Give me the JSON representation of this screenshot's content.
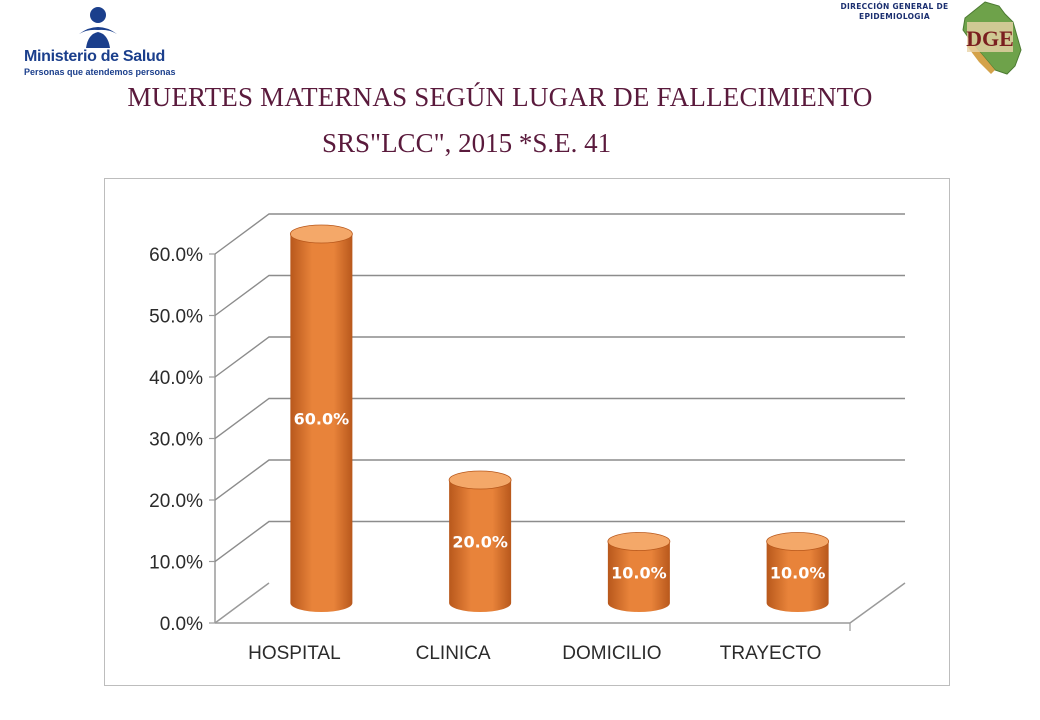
{
  "header": {
    "ministry_name": "Ministerio de Salud",
    "ministry_tagline": "Personas que atendemos personas",
    "dge_line1": "DIRECCIÓN GENERAL DE",
    "dge_line2": "EPIDEMIOLOGIA",
    "dge_letters": "DGE"
  },
  "title_line1": "MUERTES MATERNAS SEGÚN LUGAR DE FALLECIMIENTO",
  "title_line2": "SRS\"LCC\",  2015 *S.E. 41",
  "colors": {
    "bar": "#e8833a",
    "bar_dark": "#b8581c",
    "bar_light": "#f4a869",
    "title": "#5a1a3c",
    "brand_blue": "#1b3f8c"
  },
  "chart_data": {
    "type": "bar",
    "style": "3d-cylinder",
    "title": "",
    "xlabel": "",
    "ylabel": "",
    "categories": [
      "HOSPITAL",
      "CLINICA",
      "DOMICILIO",
      "TRAYECTO"
    ],
    "values": [
      60.0,
      20.0,
      10.0,
      10.0
    ],
    "data_labels": [
      "60.0%",
      "20.0%",
      "10.0%",
      "10.0%"
    ],
    "ylim": [
      0,
      60
    ],
    "yticks": [
      0,
      10,
      20,
      30,
      40,
      50,
      60
    ],
    "ytick_labels": [
      "0.0%",
      "10.0%",
      "20.0%",
      "30.0%",
      "40.0%",
      "50.0%",
      "60.0%"
    ],
    "grid": true,
    "legend": "none"
  }
}
